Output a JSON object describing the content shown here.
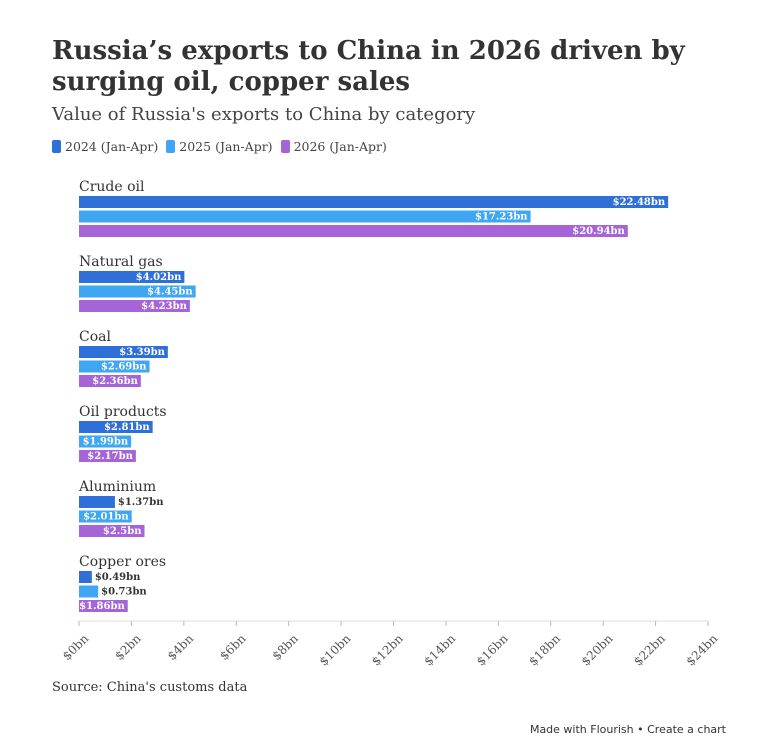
{
  "chart_data": {
    "type": "bar",
    "orientation": "horizontal",
    "title": "Russia’s exports to China in 2026 driven by surging oil, copper sales",
    "subtitle": "Value of Russia's exports to China by category",
    "source": "Source: China's customs data",
    "footer": "Made with Flourish • Create a chart",
    "categories": [
      "Crude oil",
      "Natural gas",
      "Coal",
      "Oil products",
      "Aluminium",
      "Copper ores"
    ],
    "series": [
      {
        "name": "2024 (Jan-Apr)",
        "color": "#2f6fd8",
        "values": [
          22.48,
          4.02,
          3.39,
          2.81,
          1.37,
          0.49
        ],
        "value_labels": [
          "$22.48bn",
          "$4.02bn",
          "$3.39bn",
          "$2.81bn",
          "$1.37bn",
          "$0.49bn"
        ]
      },
      {
        "name": "2025 (Jan-Apr)",
        "color": "#3fa6f2",
        "values": [
          17.23,
          4.45,
          2.69,
          1.99,
          2.01,
          0.73
        ],
        "value_labels": [
          "$17.23bn",
          "$4.45bn",
          "$2.69bn",
          "$1.99bn",
          "$2.01bn",
          "$0.73bn"
        ]
      },
      {
        "name": "2026 (Jan-Apr)",
        "color": "#a565d9",
        "values": [
          20.94,
          4.23,
          2.36,
          2.17,
          2.5,
          1.86
        ],
        "value_labels": [
          "$20.94bn",
          "$4.23bn",
          "$2.36bn",
          "$2.17bn",
          "$2.5bn",
          "$1.86bn"
        ]
      }
    ],
    "xlim": [
      0,
      24
    ],
    "xticks": [
      {
        "value": 0,
        "label": "$0bn"
      },
      {
        "value": 2,
        "label": "$2bn"
      },
      {
        "value": 4,
        "label": "$4bn"
      },
      {
        "value": 6,
        "label": "$6bn"
      },
      {
        "value": 8,
        "label": "$8bn"
      },
      {
        "value": 10,
        "label": "$10bn"
      },
      {
        "value": 12,
        "label": "$12bn"
      },
      {
        "value": 14,
        "label": "$14bn"
      },
      {
        "value": 16,
        "label": "$16bn"
      },
      {
        "value": 18,
        "label": "$18bn"
      },
      {
        "value": 20,
        "label": "$20bn"
      },
      {
        "value": 22,
        "label": "$22bn"
      },
      {
        "value": 24,
        "label": "$24bn"
      }
    ],
    "grid": false
  }
}
